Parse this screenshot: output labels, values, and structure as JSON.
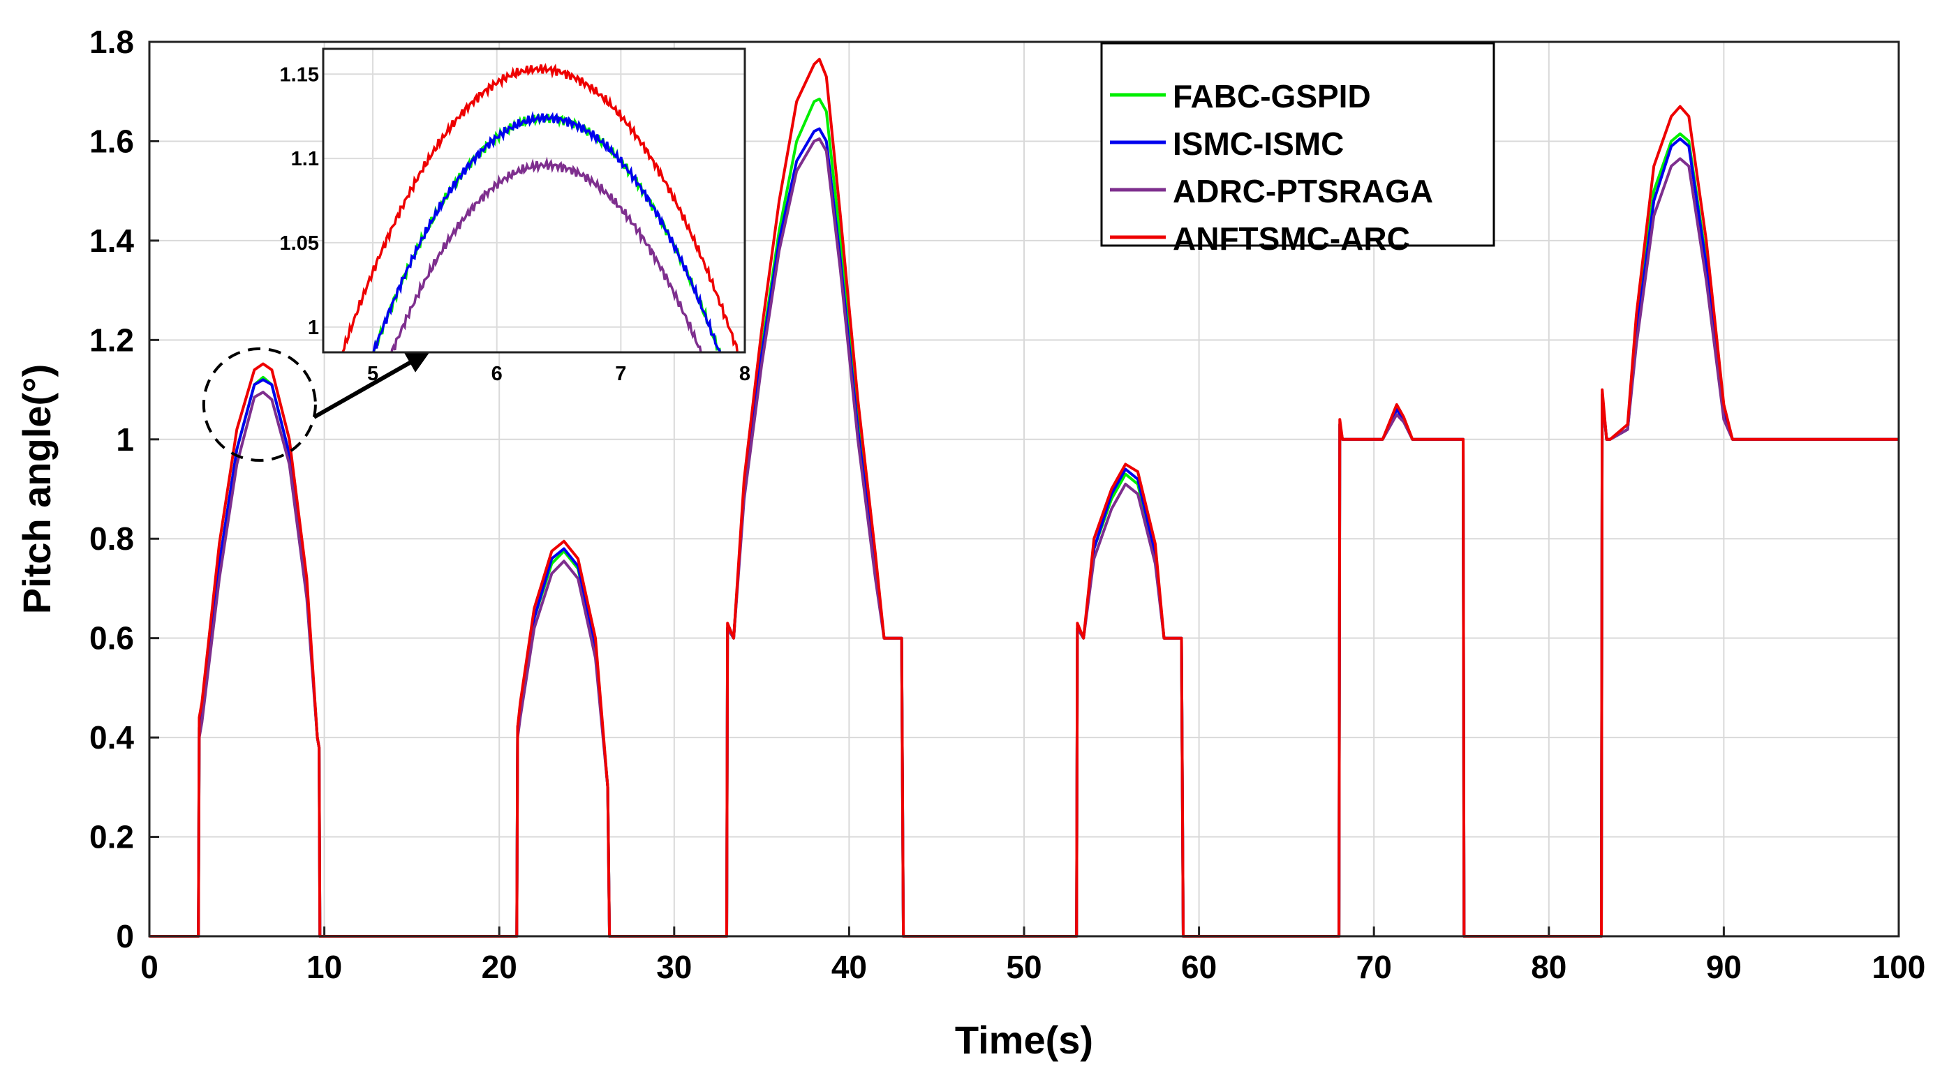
{
  "chart_data": {
    "type": "line",
    "title": "",
    "xlabel": "Time(s)",
    "ylabel": "Pitch angle(°)",
    "xlim": [
      0,
      100
    ],
    "ylim": [
      0,
      1.8
    ],
    "grid": true,
    "legend_position": "top-right",
    "x_ticks": [
      0,
      10,
      20,
      30,
      40,
      50,
      60,
      70,
      80,
      90,
      100
    ],
    "x_tick_labels": [
      "0",
      "10",
      "20",
      "30",
      "40",
      "50",
      "60",
      "70",
      "80",
      "90",
      "100"
    ],
    "y_ticks": [
      0,
      0.2,
      0.4,
      0.6,
      0.8,
      1.0,
      1.2,
      1.4,
      1.6,
      1.8
    ],
    "y_tick_labels": [
      "0",
      "0.2",
      "0.4",
      "0.6",
      "0.8",
      "1",
      "1.2",
      "1.4",
      "1.6",
      "1.8"
    ],
    "series": [
      {
        "name": "FABC-GSPID",
        "color": "#00ee00",
        "x": [
          0,
          2.8,
          2.85,
          3.0,
          4.0,
          5.0,
          6.0,
          6.5,
          7.0,
          8.0,
          9.0,
          9.6,
          9.7,
          9.75,
          10.1,
          21.0,
          21.05,
          21.2,
          22.0,
          23.0,
          23.7,
          24.5,
          25.5,
          26.2,
          26.3,
          26.5,
          33.0,
          33.05,
          33.4,
          34.0,
          35.0,
          36.0,
          37.0,
          38.0,
          38.3,
          38.7,
          39.5,
          40.5,
          41.5,
          42.0,
          42.2,
          43.0,
          43.1,
          43.2,
          53.0,
          53.05,
          53.4,
          54.0,
          55.0,
          55.8,
          56.5,
          57.5,
          58.0,
          59.0,
          59.1,
          59.2,
          68.0,
          68.05,
          68.2,
          68.4,
          70.5,
          71.3,
          71.7,
          72.2,
          75.1,
          75.15,
          83.0,
          83.05,
          83.3,
          83.5,
          84.5,
          85.0,
          86.0,
          87.0,
          87.5,
          88.0,
          89.0,
          90.0,
          90.5,
          100
        ],
        "values": [
          0,
          0,
          0.42,
          0.45,
          0.75,
          0.98,
          1.11,
          1.125,
          1.11,
          0.97,
          0.7,
          0.4,
          0.38,
          0,
          0,
          0,
          0.42,
          0.46,
          0.64,
          0.75,
          0.775,
          0.74,
          0.58,
          0.3,
          0,
          0,
          0,
          0.62,
          0.6,
          0.9,
          1.18,
          1.42,
          1.6,
          1.68,
          1.685,
          1.66,
          1.4,
          1.05,
          0.75,
          0.6,
          0.6,
          0.6,
          0,
          0,
          0,
          0.62,
          0.6,
          0.78,
          0.88,
          0.93,
          0.91,
          0.76,
          0.6,
          0.6,
          0,
          0,
          0,
          1.03,
          1.0,
          1.0,
          1.0,
          1.06,
          1.04,
          1.0,
          1.0,
          0,
          0,
          1.09,
          1.0,
          1.0,
          1.02,
          1.22,
          1.5,
          1.6,
          1.615,
          1.6,
          1.36,
          1.05,
          1.0,
          1.0
        ]
      },
      {
        "name": "ISMC-ISMC",
        "color": "#0000ee",
        "x": [
          0,
          2.8,
          2.85,
          3.0,
          4.0,
          5.0,
          6.0,
          6.5,
          7.0,
          8.0,
          9.0,
          9.6,
          9.7,
          9.75,
          10.1,
          21.0,
          21.05,
          21.2,
          22.0,
          23.0,
          23.7,
          24.5,
          25.5,
          26.2,
          26.3,
          26.5,
          33.0,
          33.05,
          33.4,
          34.0,
          35.0,
          36.0,
          37.0,
          38.0,
          38.3,
          38.7,
          39.5,
          40.5,
          41.5,
          42.0,
          42.2,
          43.0,
          43.1,
          43.2,
          53.0,
          53.05,
          53.4,
          54.0,
          55.0,
          55.8,
          56.5,
          57.5,
          58.0,
          59.0,
          59.1,
          59.2,
          68.0,
          68.05,
          68.2,
          68.4,
          70.5,
          71.3,
          71.7,
          72.2,
          75.1,
          75.15,
          83.0,
          83.05,
          83.3,
          83.5,
          84.5,
          85.0,
          86.0,
          87.0,
          87.5,
          88.0,
          89.0,
          90.0,
          90.5,
          100
        ],
        "values": [
          0,
          0,
          0.42,
          0.45,
          0.75,
          0.98,
          1.11,
          1.12,
          1.11,
          0.97,
          0.7,
          0.4,
          0.38,
          0,
          0,
          0,
          0.42,
          0.46,
          0.64,
          0.76,
          0.78,
          0.745,
          0.58,
          0.3,
          0,
          0,
          0,
          0.62,
          0.6,
          0.9,
          1.17,
          1.4,
          1.56,
          1.62,
          1.625,
          1.6,
          1.36,
          1.02,
          0.74,
          0.6,
          0.6,
          0.6,
          0,
          0,
          0,
          0.62,
          0.6,
          0.78,
          0.89,
          0.94,
          0.92,
          0.77,
          0.6,
          0.6,
          0,
          0,
          0,
          1.03,
          1.0,
          1.0,
          1.0,
          1.06,
          1.04,
          1.0,
          1.0,
          0,
          0,
          1.09,
          1.0,
          1.0,
          1.02,
          1.21,
          1.48,
          1.59,
          1.605,
          1.59,
          1.35,
          1.05,
          1.0,
          1.0
        ]
      },
      {
        "name": "ADRC-PTSRAGA",
        "color": "#7e2f8e",
        "x": [
          0,
          2.8,
          2.85,
          3.0,
          4.0,
          5.0,
          6.0,
          6.5,
          7.0,
          8.0,
          9.0,
          9.6,
          9.7,
          9.75,
          10.1,
          21.0,
          21.05,
          21.2,
          22.0,
          23.0,
          23.7,
          24.5,
          25.5,
          26.2,
          26.3,
          26.5,
          33.0,
          33.05,
          33.4,
          34.0,
          35.0,
          36.0,
          37.0,
          38.0,
          38.3,
          38.7,
          39.5,
          40.5,
          41.5,
          42.0,
          42.2,
          43.0,
          43.1,
          43.2,
          53.0,
          53.05,
          53.4,
          54.0,
          55.0,
          55.8,
          56.5,
          57.5,
          58.0,
          59.0,
          59.1,
          59.2,
          68.0,
          68.05,
          68.2,
          68.4,
          70.5,
          71.3,
          71.7,
          72.2,
          75.1,
          75.15,
          83.0,
          83.05,
          83.3,
          83.5,
          84.5,
          85.0,
          86.0,
          87.0,
          87.5,
          88.0,
          89.0,
          90.0,
          90.5,
          100
        ],
        "values": [
          0,
          0,
          0.4,
          0.43,
          0.72,
          0.95,
          1.085,
          1.095,
          1.08,
          0.95,
          0.68,
          0.4,
          0.38,
          0,
          0,
          0,
          0.4,
          0.44,
          0.62,
          0.73,
          0.755,
          0.72,
          0.56,
          0.3,
          0,
          0,
          0,
          0.62,
          0.6,
          0.88,
          1.15,
          1.38,
          1.54,
          1.6,
          1.605,
          1.58,
          1.34,
          1.0,
          0.72,
          0.6,
          0.6,
          0.6,
          0,
          0,
          0,
          0.62,
          0.6,
          0.76,
          0.86,
          0.91,
          0.89,
          0.75,
          0.6,
          0.6,
          0,
          0,
          0,
          1.03,
          1.0,
          1.0,
          1.0,
          1.05,
          1.035,
          1.0,
          1.0,
          0,
          0,
          1.09,
          1.0,
          1.0,
          1.02,
          1.19,
          1.45,
          1.55,
          1.565,
          1.55,
          1.32,
          1.04,
          1.0,
          1.0
        ]
      },
      {
        "name": "ANFTSMC-ARC",
        "color": "#ee0000",
        "x": [
          0,
          2.8,
          2.85,
          3.0,
          4.0,
          5.0,
          6.0,
          6.5,
          7.0,
          8.0,
          9.0,
          9.6,
          9.7,
          9.75,
          10.1,
          21.0,
          21.05,
          21.2,
          22.0,
          23.0,
          23.7,
          24.5,
          25.5,
          26.2,
          26.3,
          26.5,
          33.0,
          33.05,
          33.4,
          34.0,
          35.0,
          36.0,
          37.0,
          38.0,
          38.3,
          38.7,
          39.5,
          40.5,
          41.5,
          42.0,
          42.2,
          43.0,
          43.1,
          43.2,
          53.0,
          53.05,
          53.4,
          54.0,
          55.0,
          55.8,
          56.5,
          57.5,
          58.0,
          59.0,
          59.1,
          59.2,
          68.0,
          68.05,
          68.2,
          68.4,
          70.5,
          71.3,
          71.7,
          72.2,
          75.1,
          75.15,
          83.0,
          83.05,
          83.3,
          83.5,
          84.5,
          85.0,
          86.0,
          87.0,
          87.5,
          88.0,
          89.0,
          90.0,
          90.5,
          100
        ],
        "values": [
          0,
          0,
          0.44,
          0.47,
          0.79,
          1.02,
          1.14,
          1.152,
          1.14,
          1.0,
          0.72,
          0.4,
          0.38,
          0,
          0,
          0,
          0.42,
          0.47,
          0.66,
          0.775,
          0.795,
          0.76,
          0.6,
          0.3,
          0,
          0,
          0,
          0.63,
          0.6,
          0.92,
          1.22,
          1.48,
          1.68,
          1.755,
          1.765,
          1.73,
          1.45,
          1.08,
          0.77,
          0.6,
          0.6,
          0.6,
          0,
          0,
          0,
          0.63,
          0.6,
          0.8,
          0.9,
          0.95,
          0.935,
          0.79,
          0.6,
          0.6,
          0,
          0,
          0,
          1.04,
          1.0,
          1.0,
          1.0,
          1.07,
          1.045,
          1.0,
          1.0,
          0,
          0,
          1.1,
          1.0,
          1.0,
          1.03,
          1.25,
          1.55,
          1.65,
          1.67,
          1.65,
          1.4,
          1.07,
          1.0,
          1.0
        ]
      }
    ],
    "inset": {
      "xlim": [
        4.6,
        8
      ],
      "ylim": [
        0.985,
        1.165
      ],
      "x_ticks": [
        5,
        6,
        7,
        8
      ],
      "x_tick_labels": [
        "5",
        "6",
        "7",
        "8"
      ],
      "y_ticks": [
        1.0,
        1.05,
        1.1,
        1.15
      ],
      "y_tick_labels": [
        "1",
        "1.05",
        "1.1",
        "1.15"
      ],
      "zoom_target_x": 6.3,
      "zoom_target_y": 1.07,
      "peaks": {
        "FABC-GSPID": {
          "x": 6.4,
          "y": 1.124
        },
        "ISMC-ISMC": {
          "x": 6.4,
          "y": 1.124
        },
        "ADRC-PTSRAGA": {
          "x": 6.4,
          "y": 1.096
        },
        "ANFTSMC-ARC": {
          "x": 6.35,
          "y": 1.153
        }
      },
      "curvature": {
        "FABC-GSPID": 0.0715,
        "ISMC-ISMC": 0.0715,
        "ADRC-PTSRAGA": 0.0715,
        "ANFTSMC-ARC": 0.066
      }
    }
  }
}
